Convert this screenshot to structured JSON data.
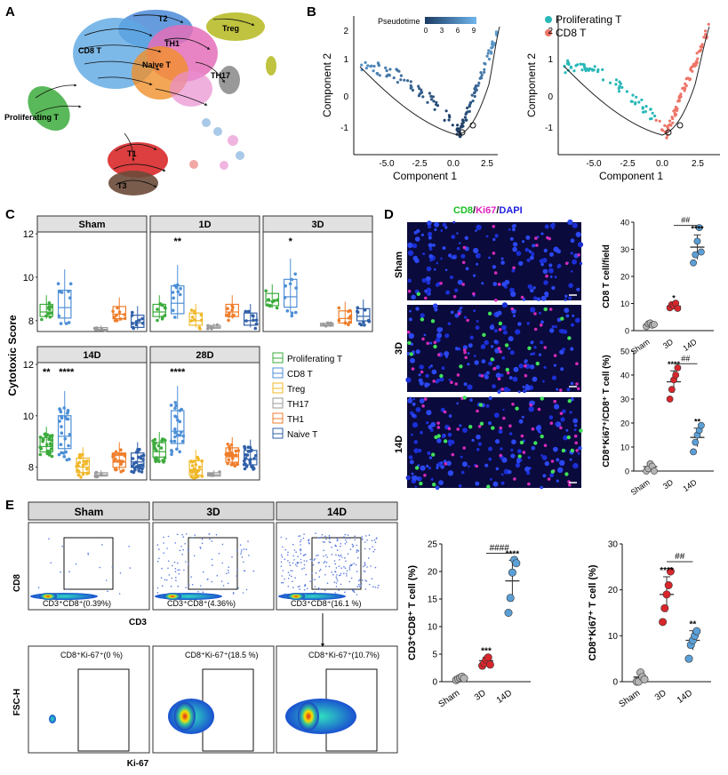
{
  "panel_letters": {
    "a": "A",
    "b": "B",
    "c": "C",
    "d": "D",
    "e": "E"
  },
  "panel_a": {
    "clusters": [
      "T2",
      "Treg",
      "CD8 T",
      "TH1",
      "Naive T",
      "TH17",
      "Proliferating T",
      "T1",
      "T3"
    ],
    "colors": {
      "t2": "#4b8bd8",
      "treg": "#b9bd2a",
      "cd8": "#5da7e2",
      "th1": "#e46fb8",
      "naive": "#f0902a",
      "th17": "#8e8e8e",
      "prolif": "#3cab3c",
      "t1": "#d9292a",
      "t3": "#6b4a38",
      "other1": "#f2a7a7",
      "other2": "#a9c9e8",
      "other3": "#efb5e0"
    }
  },
  "panel_b_left": {
    "legend_title": "Pseudotime",
    "legend_ticks": [
      "0",
      "3",
      "6",
      "9"
    ],
    "xlabel": "Component 1",
    "ylabel": "Component 2",
    "xticks": [
      "-5.0",
      "-2.5",
      "0.0",
      "2.5"
    ],
    "yticks": [
      "2",
      "1",
      "0",
      "-1"
    ],
    "color_low": "#1b3a63",
    "color_high": "#6fb6ec"
  },
  "panel_b_right": {
    "legend": [
      {
        "name": "Proliferating T",
        "color": "#29b8b8"
      },
      {
        "name": "CD8 T",
        "color": "#ee7467"
      }
    ],
    "xlabel": "Component 1",
    "ylabel": "Component 2",
    "xticks": [
      "-5.0",
      "-2.5",
      "0.0",
      "2.5"
    ],
    "yticks": [
      "2",
      "1",
      "0",
      "-1"
    ]
  },
  "chart_data": [
    {
      "type": "box",
      "title": "Cytotoxic Score",
      "ylabel": "Cytotoxic Score",
      "ylim": [
        7.5,
        12
      ],
      "yticks": [
        "12",
        "10",
        "8"
      ],
      "groups": [
        "Sham",
        "1D",
        "3D",
        "14D",
        "28D"
      ],
      "series_names": [
        "Proliferating T",
        "CD8 T",
        "Treg",
        "TH17",
        "TH1",
        "Naive T"
      ],
      "series_colors": [
        "#3cab3c",
        "#4d8fd6",
        "#f0b82a",
        "#9a9a9a",
        "#ef7e2c",
        "#2f5fa8"
      ],
      "medians": {
        "Sham": [
          8.4,
          8.6,
          null,
          7.6,
          8.3,
          7.9
        ],
        "1D": [
          8.4,
          8.8,
          8.0,
          7.7,
          8.4,
          8.0
        ],
        "3D": [
          8.9,
          9.1,
          null,
          7.8,
          8.1,
          8.2
        ],
        "14D": [
          8.8,
          9.2,
          8.0,
          7.7,
          8.2,
          8.2
        ],
        "28D": [
          8.6,
          9.4,
          7.9,
          7.7,
          8.4,
          8.3
        ]
      },
      "significance": {
        "1D": "**",
        "3D": "*",
        "14D_prolif": "**",
        "14D_cd8": "****",
        "28D": "****"
      }
    },
    {
      "type": "scatter",
      "title": "CD8 T cell/field",
      "ylabel": "CD8 T cell/field",
      "categories": [
        "Sham",
        "3D",
        "14D"
      ],
      "means": [
        2.2,
        9.0,
        30.8
      ],
      "yticks": [
        "40",
        "30",
        "20",
        "10",
        "0"
      ],
      "ylim": [
        0,
        40
      ],
      "points": [
        [
          1.5,
          2.5,
          2.8,
          2.0,
          2.3
        ],
        [
          8.4,
          9.6,
          9.1,
          10.1,
          8.2
        ],
        [
          25,
          28,
          33,
          38,
          29
        ]
      ],
      "colors": [
        "#b5b5b5",
        "#d8262b",
        "#5b9fd6"
      ],
      "stars": [
        "",
        "*",
        "****"
      ],
      "hash": "##"
    },
    {
      "type": "scatter",
      "title": "CD8+Ki67+/CD8+ T cell (%)",
      "ylabel": "CD8⁺Ki67⁺/CD8⁺ T cell (%)",
      "categories": [
        "Sham",
        "3D",
        "14D"
      ],
      "means": [
        1.8,
        37.2,
        14.0
      ],
      "yticks": [
        "50",
        "40",
        "30",
        "20",
        "10",
        "0"
      ],
      "ylim": [
        0,
        50
      ],
      "points": [
        [
          0,
          1,
          3,
          2,
          0
        ],
        [
          30,
          34,
          38,
          40,
          43
        ],
        [
          8,
          12,
          15,
          17,
          19
        ]
      ],
      "colors": [
        "#b5b5b5",
        "#d8262b",
        "#5b9fd6"
      ],
      "stars": [
        "",
        "****",
        "**"
      ],
      "hash": "##"
    },
    {
      "type": "scatter",
      "title": "CD3+CD8+ T cell (%)",
      "ylabel": "CD3⁺CD8⁺ T cell (%)",
      "categories": [
        "Sham",
        "3D",
        "14D"
      ],
      "means": [
        0.6,
        3.8,
        18.3
      ],
      "yticks": [
        "25",
        "20",
        "15",
        "10",
        "5",
        "0"
      ],
      "ylim": [
        0,
        25
      ],
      "points": [
        [
          0.3,
          0.5,
          0.7,
          0.9,
          0.6
        ],
        [
          2.9,
          3.4,
          4.0,
          4.4,
          3.1
        ],
        [
          12.5,
          15.2,
          19.8,
          22.1,
          21.5
        ]
      ],
      "colors": [
        "#b5b5b5",
        "#d8262b",
        "#5b9fd6"
      ],
      "stars": [
        "",
        "***",
        "****"
      ],
      "hash": "####"
    },
    {
      "type": "scatter",
      "title": "CD8+Ki67+ T cell (%)",
      "ylabel": "CD8⁺Ki67⁺ T cell (%)",
      "categories": [
        "Sham",
        "3D",
        "14D"
      ],
      "means": [
        1.0,
        19.0,
        9.0
      ],
      "yticks": [
        "30",
        "20",
        "10",
        "0"
      ],
      "ylim": [
        0,
        30
      ],
      "points": [
        [
          0,
          0,
          2,
          1,
          0.5
        ],
        [
          13,
          16,
          19,
          21,
          24
        ],
        [
          5,
          8,
          9,
          10,
          11
        ]
      ],
      "colors": [
        "#b5b5b5",
        "#d8262b",
        "#5b9fd6"
      ],
      "stars": [
        "",
        "****",
        "**"
      ],
      "hash": "##"
    }
  ],
  "panel_c_legend": [
    "Proliferating T",
    "CD8 T",
    "Treg",
    "TH17",
    "TH1",
    "Naive T"
  ],
  "panel_d": {
    "stain_cd8": "CD8",
    "stain_ki67": "Ki67",
    "stain_dapi": "DAPI",
    "rows": [
      "Sham",
      "3D",
      "14D"
    ],
    "xticks": [
      "Sham",
      "3D",
      "14D"
    ]
  },
  "panel_e": {
    "top_headers": [
      "Sham",
      "3D",
      "14D"
    ],
    "top_gates": [
      "CD3⁺CD8⁺(0.39%)",
      "CD3⁺CD8⁺(4.36%)",
      "CD3⁺CD8⁺(16.1 %)"
    ],
    "bottom_gates": [
      "CD8⁺Ki-67⁺(0 %)",
      "CD8⁺Ki-67⁺(18.5 %)",
      "CD8⁺Ki-67⁺(10.7%)"
    ],
    "top_ylabel": "CD8",
    "top_xlabel": "CD3",
    "bottom_ylabel": "FSC-H",
    "bottom_xlabel": "Ki-67"
  }
}
